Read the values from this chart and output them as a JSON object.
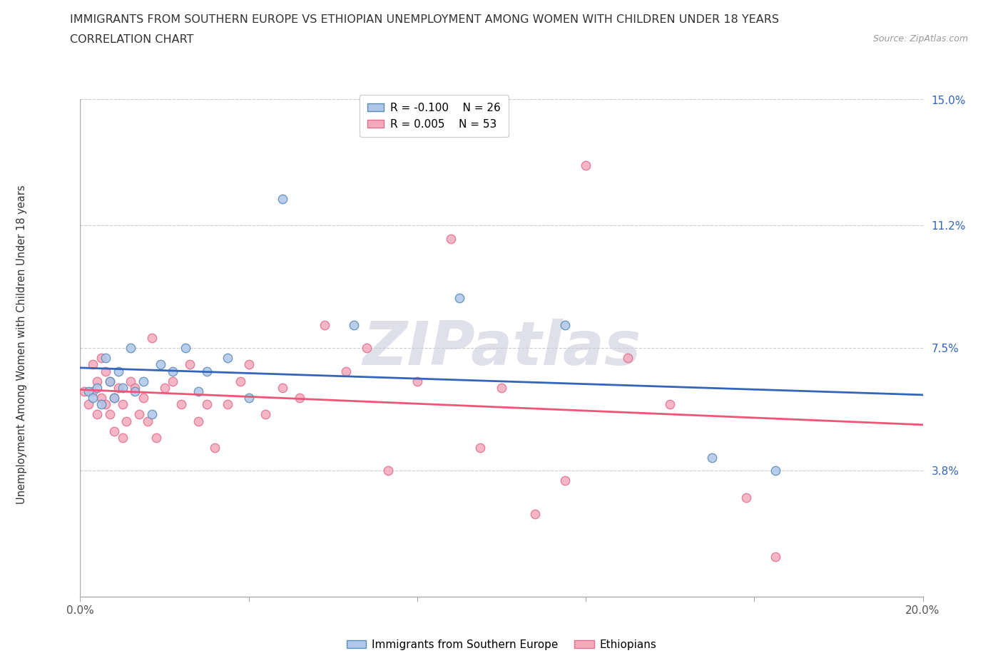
{
  "title_line1": "IMMIGRANTS FROM SOUTHERN EUROPE VS ETHIOPIAN UNEMPLOYMENT AMONG WOMEN WITH CHILDREN UNDER 18 YEARS",
  "title_line2": "CORRELATION CHART",
  "source_text": "Source: ZipAtlas.com",
  "ylabel": "Unemployment Among Women with Children Under 18 years",
  "xlim": [
    0.0,
    0.2
  ],
  "ylim": [
    0.0,
    0.15
  ],
  "yticks": [
    0.038,
    0.075,
    0.112,
    0.15
  ],
  "ytick_labels": [
    "3.8%",
    "7.5%",
    "11.2%",
    "15.0%"
  ],
  "xticks": [
    0.0,
    0.04,
    0.08,
    0.12,
    0.16,
    0.2
  ],
  "xtick_labels": [
    "0.0%",
    "",
    "",
    "",
    "",
    "20.0%"
  ],
  "blue_face_color": "#AEC6E8",
  "blue_edge_color": "#5B8DB8",
  "pink_face_color": "#F4AABB",
  "pink_edge_color": "#E07090",
  "blue_line_color": "#3366BB",
  "pink_line_color": "#EE5577",
  "legend_r_blue": "-0.100",
  "legend_n_blue": "26",
  "legend_r_pink": "0.005",
  "legend_n_pink": "53",
  "blue_scatter_x": [
    0.002,
    0.003,
    0.004,
    0.005,
    0.006,
    0.007,
    0.008,
    0.009,
    0.01,
    0.012,
    0.013,
    0.015,
    0.017,
    0.019,
    0.022,
    0.025,
    0.028,
    0.03,
    0.035,
    0.04,
    0.048,
    0.065,
    0.09,
    0.115,
    0.15,
    0.165
  ],
  "blue_scatter_y": [
    0.062,
    0.06,
    0.063,
    0.058,
    0.072,
    0.065,
    0.06,
    0.068,
    0.063,
    0.075,
    0.062,
    0.065,
    0.055,
    0.07,
    0.068,
    0.075,
    0.062,
    0.068,
    0.072,
    0.06,
    0.12,
    0.082,
    0.09,
    0.082,
    0.042,
    0.038
  ],
  "pink_scatter_x": [
    0.001,
    0.002,
    0.003,
    0.003,
    0.004,
    0.004,
    0.005,
    0.005,
    0.006,
    0.006,
    0.007,
    0.007,
    0.008,
    0.008,
    0.009,
    0.01,
    0.01,
    0.011,
    0.012,
    0.013,
    0.014,
    0.015,
    0.016,
    0.017,
    0.018,
    0.02,
    0.022,
    0.024,
    0.026,
    0.028,
    0.03,
    0.032,
    0.035,
    0.038,
    0.04,
    0.044,
    0.048,
    0.052,
    0.058,
    0.063,
    0.068,
    0.073,
    0.08,
    0.088,
    0.095,
    0.1,
    0.108,
    0.115,
    0.12,
    0.13,
    0.14,
    0.158,
    0.165
  ],
  "pink_scatter_y": [
    0.062,
    0.058,
    0.062,
    0.07,
    0.055,
    0.065,
    0.06,
    0.072,
    0.058,
    0.068,
    0.055,
    0.065,
    0.06,
    0.05,
    0.063,
    0.048,
    0.058,
    0.053,
    0.065,
    0.063,
    0.055,
    0.06,
    0.053,
    0.078,
    0.048,
    0.063,
    0.065,
    0.058,
    0.07,
    0.053,
    0.058,
    0.045,
    0.058,
    0.065,
    0.07,
    0.055,
    0.063,
    0.06,
    0.082,
    0.068,
    0.075,
    0.038,
    0.065,
    0.108,
    0.045,
    0.063,
    0.025,
    0.035,
    0.13,
    0.072,
    0.058,
    0.03,
    0.012
  ],
  "watermark_text": "ZIPatlas",
  "watermark_color": "#CCCCDD",
  "background_color": "#FFFFFF",
  "grid_color": "#CCCCCC",
  "spine_color": "#AAAAAA",
  "title_color": "#333333",
  "ytick_color": "#3366BB",
  "xtick_color": "#555555",
  "source_color": "#999999"
}
